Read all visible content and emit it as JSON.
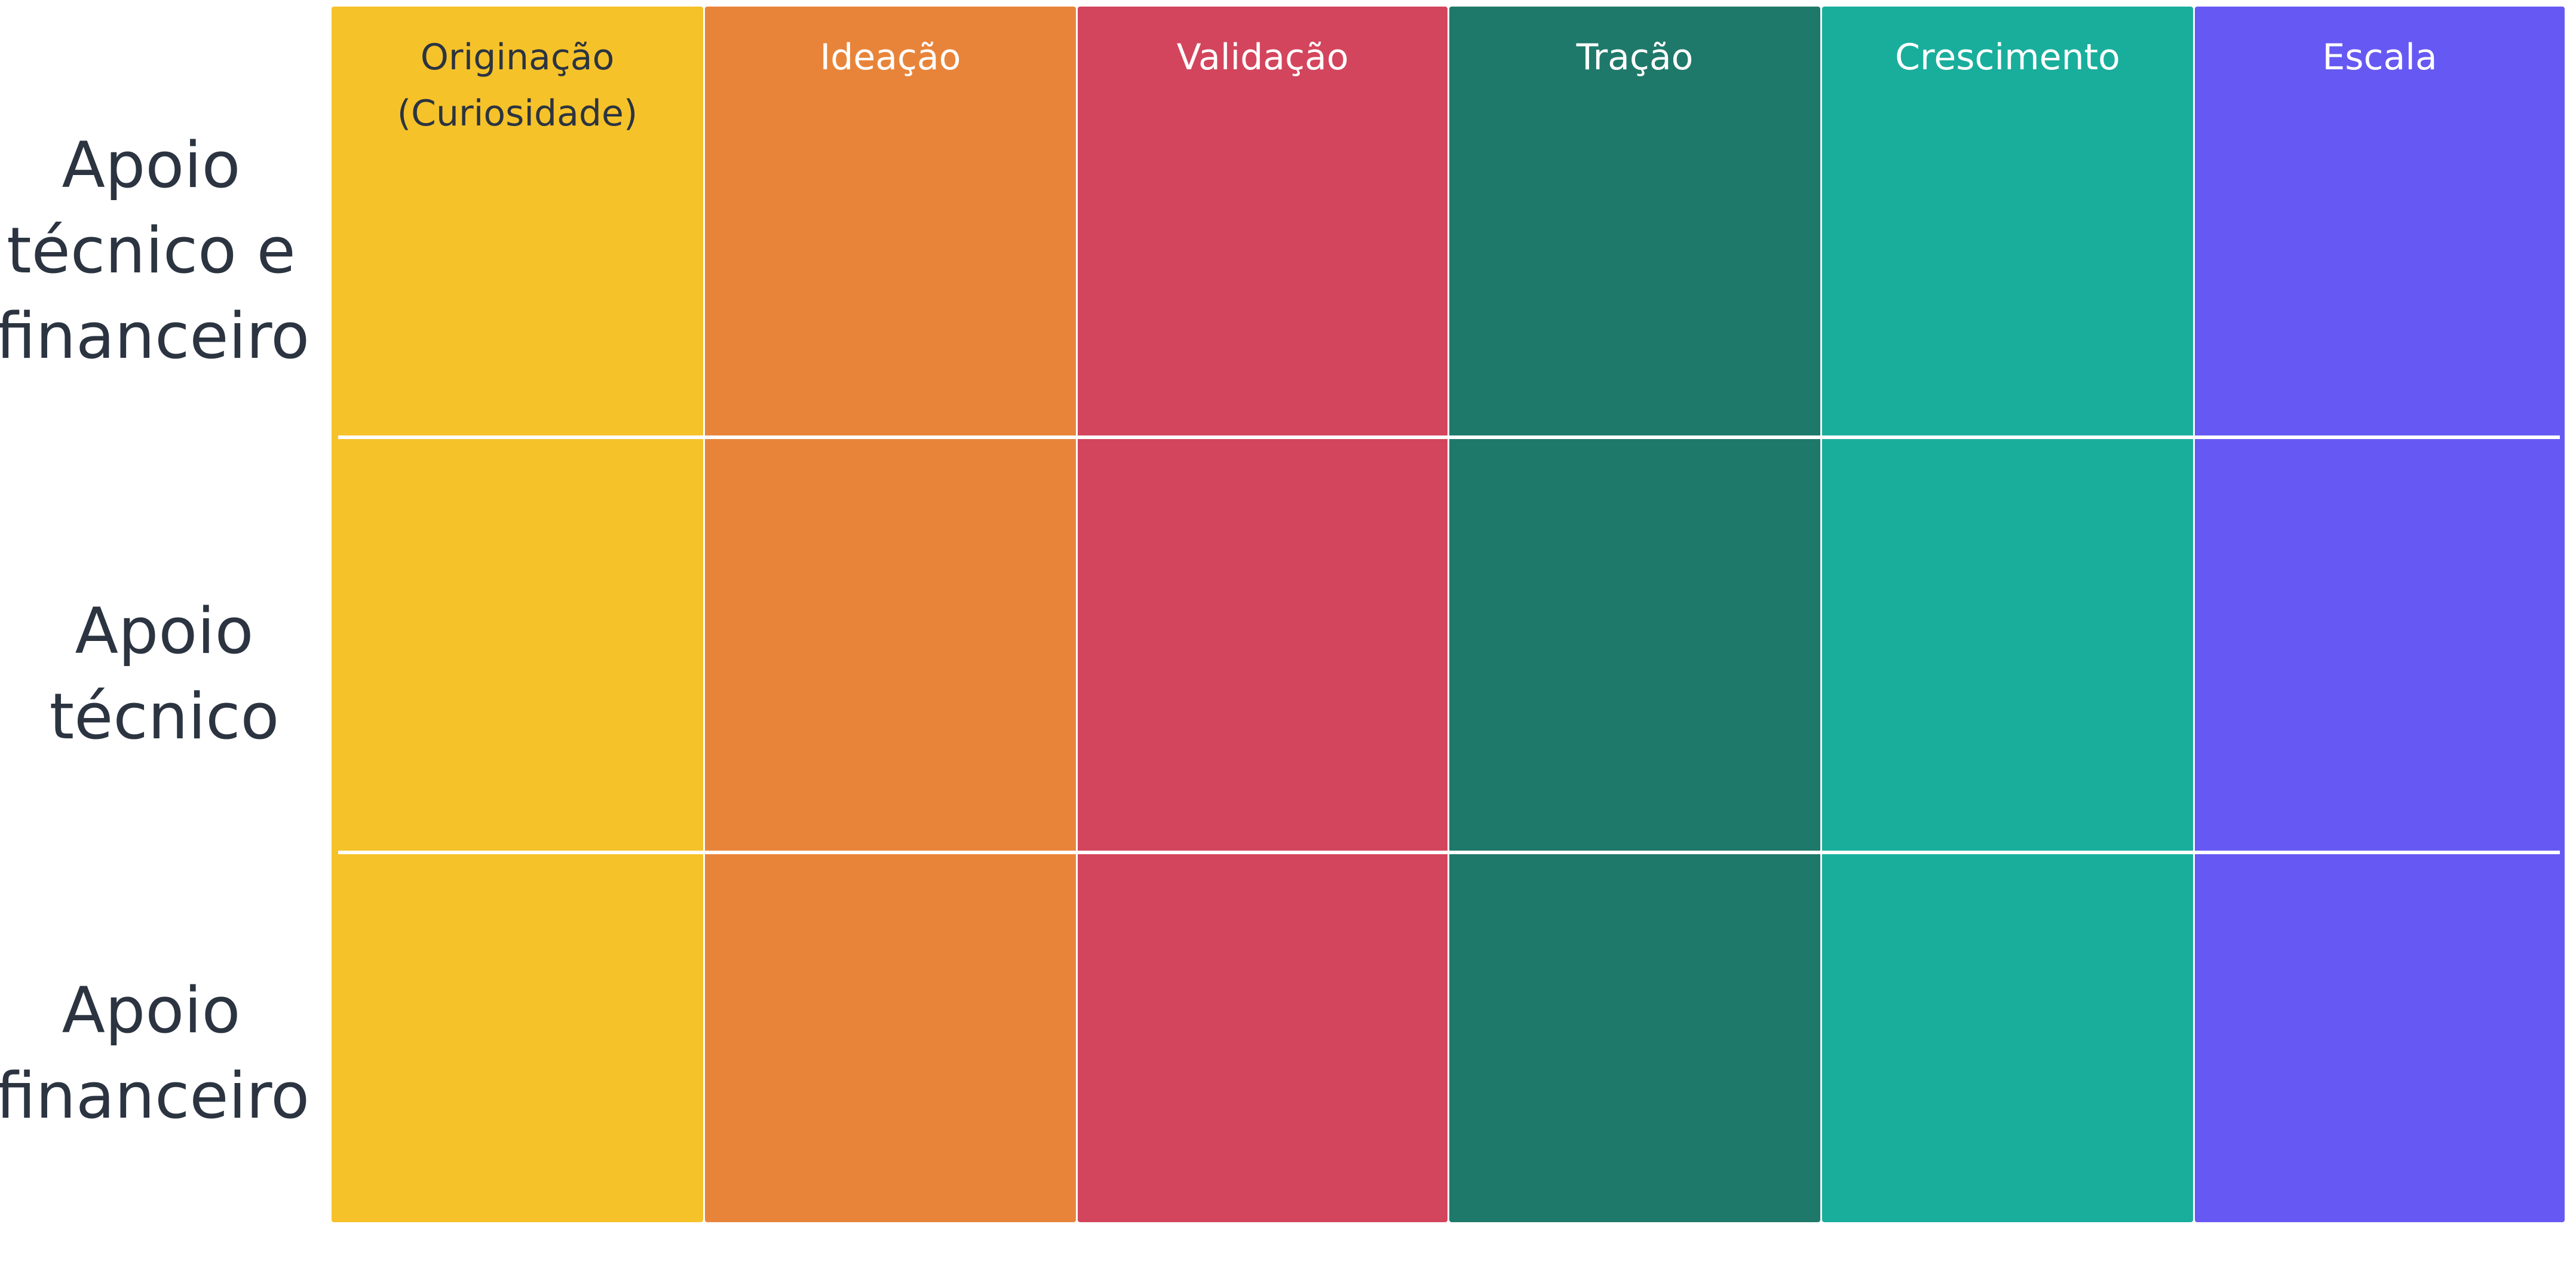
{
  "columns": [
    {
      "title_lines": [
        "Originação",
        "(Curiosidade)"
      ]
    },
    {
      "title_lines": [
        "Ideação"
      ]
    },
    {
      "title_lines": [
        "Validação"
      ]
    },
    {
      "title_lines": [
        "Tração"
      ]
    },
    {
      "title_lines": [
        "Crescimento"
      ]
    },
    {
      "title_lines": [
        "Escala"
      ]
    }
  ],
  "rows": [
    {
      "label_lines": [
        "Apoio",
        "técnico e",
        "financeiro"
      ]
    },
    {
      "label_lines": [
        "Apoio",
        "técnico"
      ]
    },
    {
      "label_lines": [
        "Apoio",
        "financeiro"
      ]
    }
  ]
}
